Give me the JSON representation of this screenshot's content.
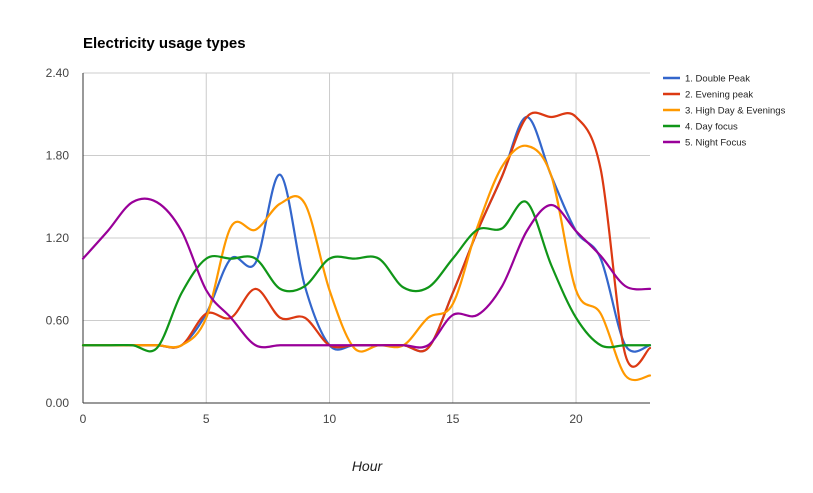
{
  "chart_data": {
    "type": "line",
    "title": "Electricity usage types",
    "xlabel": "Hour",
    "ylabel": "",
    "xlim": [
      0,
      23
    ],
    "ylim": [
      0,
      2.4
    ],
    "xticks": [
      0,
      5,
      10,
      15,
      20
    ],
    "yticks": [
      "0.00",
      "0.60",
      "1.20",
      "1.80",
      "2.40"
    ],
    "yticks_values": [
      0,
      0.6,
      1.2,
      1.8,
      2.4
    ],
    "grid": true,
    "smooth": true,
    "legend_position": "right",
    "x": [
      0,
      1,
      2,
      3,
      4,
      5,
      6,
      7,
      8,
      9,
      10,
      11,
      12,
      13,
      14,
      15,
      16,
      17,
      18,
      19,
      20,
      21,
      22,
      23
    ],
    "series": [
      {
        "name": "1. Double Peak",
        "color": "#3366cc",
        "values": [
          0.42,
          0.42,
          0.42,
          0.42,
          0.42,
          0.65,
          1.05,
          1.02,
          1.66,
          0.85,
          0.42,
          0.42,
          0.42,
          0.42,
          0.4,
          0.8,
          1.25,
          1.65,
          2.08,
          1.65,
          1.25,
          1.05,
          0.42,
          0.42
        ]
      },
      {
        "name": "2. Evening peak",
        "color": "#dc3912",
        "values": [
          0.42,
          0.42,
          0.42,
          0.42,
          0.42,
          0.65,
          0.62,
          0.83,
          0.62,
          0.62,
          0.42,
          0.42,
          0.42,
          0.42,
          0.4,
          0.8,
          1.25,
          1.65,
          2.08,
          2.08,
          2.08,
          1.7,
          0.35,
          0.4
        ]
      },
      {
        "name": "3. High Day & Evenings",
        "color": "#ff9900",
        "values": [
          0.42,
          0.42,
          0.42,
          0.42,
          0.42,
          0.62,
          1.28,
          1.26,
          1.45,
          1.45,
          0.82,
          0.4,
          0.42,
          0.42,
          0.62,
          0.72,
          1.28,
          1.72,
          1.87,
          1.65,
          0.82,
          0.65,
          0.2,
          0.2
        ]
      },
      {
        "name": "4. Day focus",
        "color": "#109618",
        "values": [
          0.42,
          0.42,
          0.42,
          0.4,
          0.8,
          1.05,
          1.05,
          1.05,
          0.83,
          0.85,
          1.05,
          1.05,
          1.05,
          0.84,
          0.84,
          1.05,
          1.26,
          1.27,
          1.46,
          1.0,
          0.62,
          0.42,
          0.42,
          0.42
        ]
      },
      {
        "name": "5. Night Focus",
        "color": "#990099",
        "values": [
          1.05,
          1.25,
          1.46,
          1.46,
          1.25,
          0.82,
          0.62,
          0.42,
          0.42,
          0.42,
          0.42,
          0.42,
          0.42,
          0.42,
          0.42,
          0.64,
          0.64,
          0.85,
          1.25,
          1.44,
          1.25,
          1.07,
          0.85,
          0.83
        ]
      }
    ]
  }
}
